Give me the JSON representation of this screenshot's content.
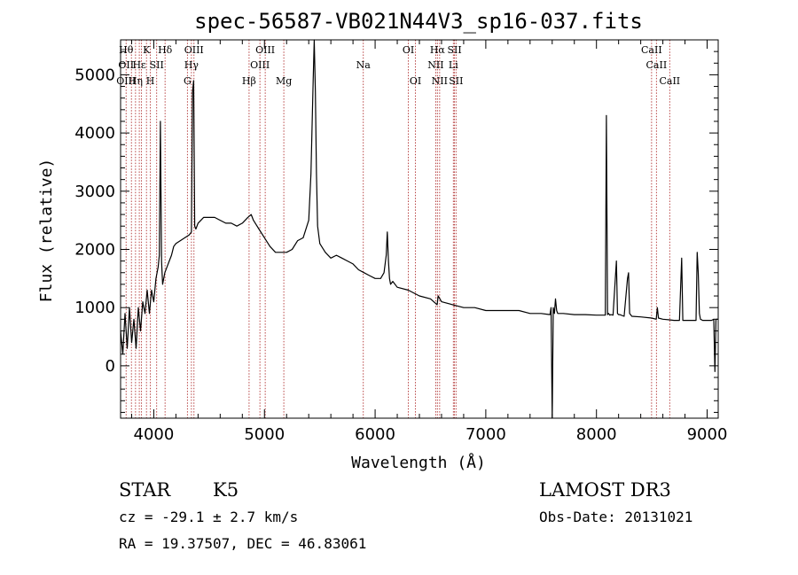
{
  "chart_data": {
    "type": "line",
    "title": "spec-56587-VB021N44V3_sp16-037.fits",
    "xlabel": "Wavelength (Å)",
    "ylabel": "Flux (relative)",
    "xlim": [
      3700,
      9100
    ],
    "ylim": [
      -900,
      5600
    ],
    "xticks": [
      4000,
      5000,
      6000,
      7000,
      8000,
      9000
    ],
    "yticks": [
      0,
      1000,
      2000,
      3000,
      4000,
      5000
    ],
    "line_color": "#000000",
    "marker_color": "#b03030",
    "series": [
      {
        "x": [
          3700,
          3720,
          3740,
          3760,
          3780,
          3800,
          3820,
          3840,
          3860,
          3880,
          3900,
          3920,
          3940,
          3960,
          3980,
          4000,
          4020,
          4040,
          4050,
          4060,
          4070,
          4080,
          4100,
          4120,
          4140,
          4160,
          4180,
          4200,
          4240,
          4280,
          4320,
          4340,
          4350,
          4360,
          4370,
          4380,
          4400,
          4450,
          4500,
          4550,
          4600,
          4650,
          4700,
          4750,
          4800,
          4850,
          4880,
          4900,
          4950,
          5000,
          5050,
          5100,
          5150,
          5200,
          5250,
          5300,
          5350,
          5400,
          5420,
          5440,
          5450,
          5460,
          5470,
          5480,
          5500,
          5550,
          5600,
          5650,
          5700,
          5750,
          5800,
          5850,
          5900,
          5950,
          6000,
          6050,
          6080,
          6100,
          6110,
          6120,
          6130,
          6140,
          6160,
          6200,
          6300,
          6400,
          6500,
          6560,
          6570,
          6600,
          6700,
          6800,
          6900,
          7000,
          7100,
          7200,
          7300,
          7400,
          7500,
          7580,
          7590,
          7600,
          7610,
          7620,
          7630,
          7640,
          7650,
          7700,
          7800,
          7900,
          8000,
          8080,
          8090,
          8100,
          8110,
          8120,
          8130,
          8150,
          8180,
          8190,
          8200,
          8210,
          8250,
          8280,
          8290,
          8300,
          8320,
          8400,
          8500,
          8540,
          8550,
          8560,
          8600,
          8660,
          8700,
          8750,
          8770,
          8780,
          8790,
          8800,
          8850,
          8900,
          8910,
          8920,
          8930,
          8940,
          8960,
          9000,
          9040,
          9060,
          9070,
          9080,
          9100
        ],
        "y": [
          600,
          200,
          900,
          300,
          1000,
          400,
          800,
          300,
          1000,
          600,
          1100,
          900,
          1300,
          900,
          1300,
          1100,
          1500,
          1700,
          1900,
          4200,
          1800,
          1400,
          1600,
          1700,
          1800,
          1900,
          2050,
          2100,
          2150,
          2200,
          2250,
          2300,
          4700,
          4900,
          2400,
          2350,
          2450,
          2550,
          2550,
          2550,
          2500,
          2450,
          2450,
          2400,
          2450,
          2550,
          2600,
          2500,
          2350,
          2200,
          2050,
          1950,
          1950,
          1950,
          2000,
          2150,
          2200,
          2500,
          3300,
          4900,
          5600,
          4700,
          3300,
          2400,
          2100,
          1950,
          1850,
          1900,
          1850,
          1800,
          1750,
          1650,
          1600,
          1550,
          1500,
          1500,
          1600,
          1900,
          2300,
          1800,
          1500,
          1400,
          1450,
          1350,
          1300,
          1200,
          1150,
          1050,
          1200,
          1100,
          1050,
          1000,
          1000,
          950,
          950,
          950,
          950,
          900,
          900,
          880,
          1000,
          -900,
          1000,
          900,
          1150,
          950,
          900,
          900,
          880,
          880,
          870,
          870,
          4300,
          880,
          900,
          870,
          880,
          870,
          1800,
          900,
          880,
          880,
          850,
          1500,
          1600,
          900,
          850,
          840,
          820,
          800,
          1000,
          820,
          800,
          790,
          780,
          780,
          1850,
          780,
          780,
          780,
          780,
          780,
          1950,
          1600,
          900,
          800,
          780,
          780,
          780,
          800,
          -100,
          800,
          800
        ]
      }
    ],
    "markers": [
      {
        "x": 3750,
        "labels": [
          "Hθ",
          "OII",
          "OIII"
        ],
        "offset": 0
      },
      {
        "x": 3798
      },
      {
        "x": 3835,
        "labels": [
          "Hη"
        ],
        "offset": 2
      },
      {
        "x": 3869,
        "labels": [
          "Hε"
        ],
        "offset": 1
      },
      {
        "x": 3889
      },
      {
        "x": 3934,
        "labels": [
          "K"
        ],
        "offset": 0
      },
      {
        "x": 3969,
        "labels": [
          "H"
        ],
        "offset": 2
      },
      {
        "x": 4026,
        "labels": [
          "SII"
        ],
        "offset": 1
      },
      {
        "x": 4102,
        "labels": [
          "Hδ"
        ],
        "offset": 0
      },
      {
        "x": 4304,
        "labels": [
          "G"
        ],
        "offset": 2
      },
      {
        "x": 4340,
        "labels": [
          "Hγ"
        ],
        "offset": 1
      },
      {
        "x": 4363,
        "labels": [
          "OIII"
        ],
        "offset": 0
      },
      {
        "x": 4861,
        "labels": [
          "Hβ"
        ],
        "offset": 2
      },
      {
        "x": 4959,
        "labels": [
          "OIII"
        ],
        "offset": 1
      },
      {
        "x": 5007,
        "labels": [
          "OIII"
        ],
        "offset": 0
      },
      {
        "x": 5175,
        "labels": [
          "Mg"
        ],
        "offset": 2
      },
      {
        "x": 5893,
        "labels": [
          "Na"
        ],
        "offset": 1
      },
      {
        "x": 6300,
        "labels": [
          "OI"
        ],
        "offset": 0
      },
      {
        "x": 6364,
        "labels": [
          "OI"
        ],
        "offset": 2
      },
      {
        "x": 6548,
        "labels": [
          "NII"
        ],
        "offset": 1
      },
      {
        "x": 6563,
        "labels": [
          "Hα"
        ],
        "offset": 0
      },
      {
        "x": 6583,
        "labels": [
          "NII"
        ],
        "offset": 2
      },
      {
        "x": 6707,
        "labels": [
          "Li"
        ],
        "offset": 1
      },
      {
        "x": 6717,
        "labels": [
          "SII"
        ],
        "offset": 0
      },
      {
        "x": 6731,
        "labels": [
          "SII"
        ],
        "offset": 2
      },
      {
        "x": 8498,
        "labels": [
          "CaII"
        ],
        "offset": 0
      },
      {
        "x": 8542,
        "labels": [
          "CaII"
        ],
        "offset": 1
      },
      {
        "x": 8662,
        "labels": [
          "CaII"
        ],
        "offset": 2
      }
    ]
  },
  "footer": {
    "object_class": "STAR",
    "subclass": "K5",
    "survey": "LAMOST DR3",
    "redshift": "cz = -29.1 ± 2.7 km/s",
    "obs_date": "Obs-Date: 20131021",
    "coords": "RA =  19.37507, DEC =  46.83061"
  }
}
